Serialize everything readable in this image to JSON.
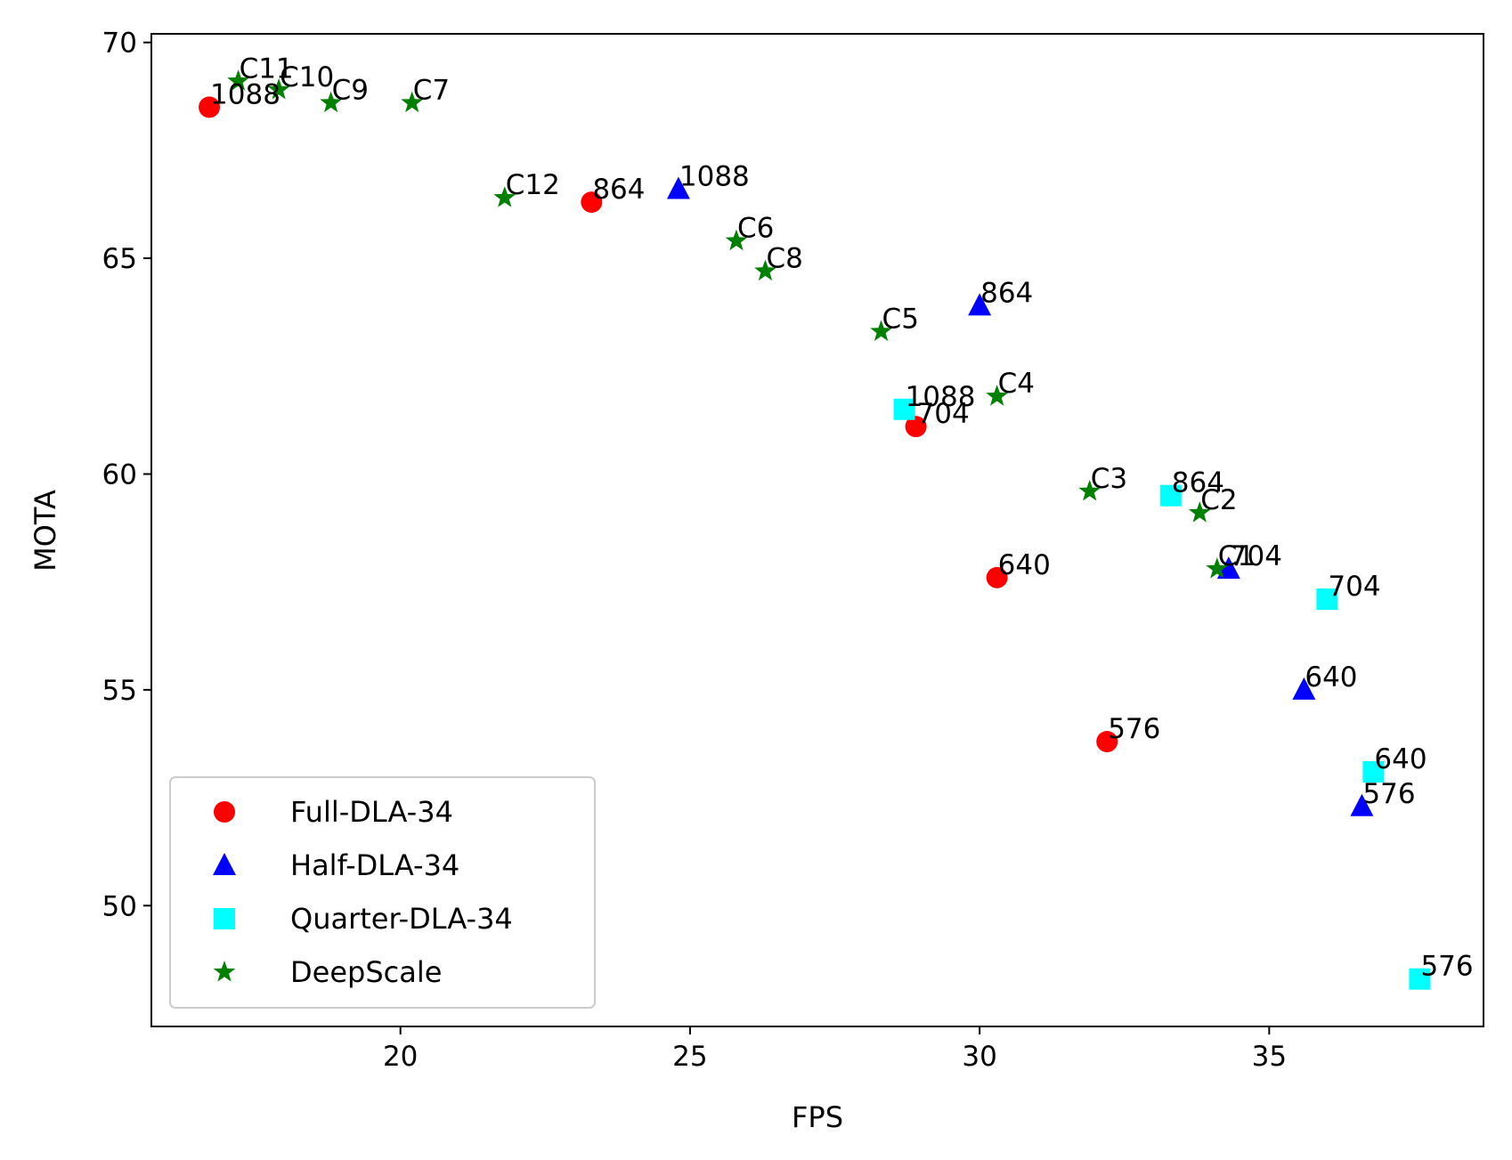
{
  "chart_data": {
    "type": "scatter",
    "title": "",
    "xlabel": "FPS",
    "ylabel": "MOTA",
    "xlim": [
      15.7,
      38.7
    ],
    "ylim": [
      47.2,
      70.2
    ],
    "xticks": [
      20,
      25,
      30,
      35
    ],
    "yticks": [
      50,
      55,
      60,
      65,
      70
    ],
    "grid": false,
    "legend": {
      "position": "lower-left"
    },
    "series": [
      {
        "name": "Full-DLA-34",
        "marker": "circle",
        "color": "#ff0000",
        "points": [
          {
            "x": 16.7,
            "y": 68.5,
            "label": "1088"
          },
          {
            "x": 23.3,
            "y": 66.3,
            "label": "864"
          },
          {
            "x": 28.9,
            "y": 61.1,
            "label": "704"
          },
          {
            "x": 30.3,
            "y": 57.6,
            "label": "640"
          },
          {
            "x": 32.2,
            "y": 53.8,
            "label": "576"
          }
        ]
      },
      {
        "name": "Half-DLA-34",
        "marker": "triangle",
        "color": "#0000ff",
        "points": [
          {
            "x": 24.8,
            "y": 66.6,
            "label": "1088"
          },
          {
            "x": 30.0,
            "y": 63.9,
            "label": "864"
          },
          {
            "x": 34.3,
            "y": 57.8,
            "label": "704"
          },
          {
            "x": 35.6,
            "y": 55.0,
            "label": "640"
          },
          {
            "x": 36.6,
            "y": 52.3,
            "label": "576"
          }
        ]
      },
      {
        "name": "Quarter-DLA-34",
        "marker": "square",
        "color": "#00ffff",
        "points": [
          {
            "x": 28.7,
            "y": 61.5,
            "label": "1088"
          },
          {
            "x": 33.3,
            "y": 59.5,
            "label": "864"
          },
          {
            "x": 36.0,
            "y": 57.1,
            "label": "704"
          },
          {
            "x": 36.8,
            "y": 53.1,
            "label": "640"
          },
          {
            "x": 37.6,
            "y": 48.3,
            "label": "576"
          }
        ]
      },
      {
        "name": "DeepScale",
        "marker": "star",
        "color": "#008000",
        "points": [
          {
            "x": 34.1,
            "y": 57.8,
            "label": "C1"
          },
          {
            "x": 33.8,
            "y": 59.1,
            "label": "C2"
          },
          {
            "x": 31.9,
            "y": 59.6,
            "label": "C3"
          },
          {
            "x": 30.3,
            "y": 61.8,
            "label": "C4"
          },
          {
            "x": 28.3,
            "y": 63.3,
            "label": "C5"
          },
          {
            "x": 25.8,
            "y": 65.4,
            "label": "C6"
          },
          {
            "x": 20.2,
            "y": 68.6,
            "label": "C7"
          },
          {
            "x": 26.3,
            "y": 64.7,
            "label": "C8"
          },
          {
            "x": 18.8,
            "y": 68.6,
            "label": "C9"
          },
          {
            "x": 17.9,
            "y": 68.9,
            "label": "C10"
          },
          {
            "x": 17.2,
            "y": 69.1,
            "label": "C11"
          },
          {
            "x": 21.8,
            "y": 66.4,
            "label": "C12"
          }
        ]
      }
    ]
  }
}
